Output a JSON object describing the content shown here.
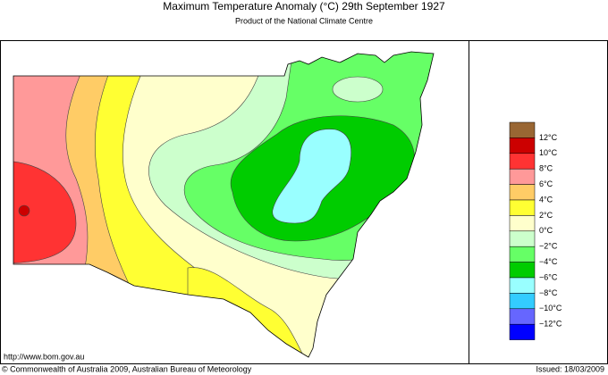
{
  "header": {
    "title": "Maximum Temperature Anomaly (°C)  29th September 1927",
    "subtitle": "Product of the National Climate Centre"
  },
  "legend": {
    "colors": [
      "#996633",
      "#cc0000",
      "#ff3333",
      "#ff9999",
      "#ffcc66",
      "#ffff33",
      "#ffffcc",
      "#ccffcc",
      "#66ff66",
      "#00cc00",
      "#99ffff",
      "#33ccff",
      "#6666ff",
      "#0000ff"
    ],
    "labels": [
      "12°C",
      "10°C",
      "8°C",
      "6°C",
      "4°C",
      "2°C",
      "0°C",
      "−2°C",
      "−4°C",
      "−6°C",
      "−8°C",
      "−10°C",
      "−12°C"
    ]
  },
  "footer": {
    "url": "http://www.bom.gov.au",
    "copyright": "© Commonwealth of Australia 2009, Australian Bureau of Meteorology",
    "issued": "Issued: 18/03/2009"
  }
}
